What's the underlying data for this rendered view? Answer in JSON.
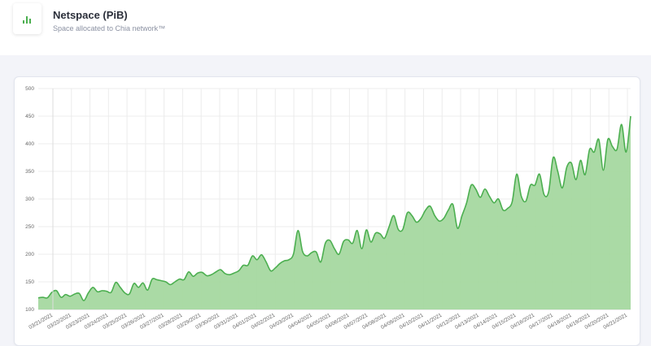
{
  "header": {
    "title": "Netspace (PiB)",
    "subtitle": "Space allocated to Chia network™",
    "icon": "bar-chart-icon"
  },
  "colors": {
    "line": "#4caf50",
    "fill": "#a5d8a0",
    "grid": "#ececec"
  },
  "chart_data": {
    "type": "area",
    "title": "",
    "xlabel": "",
    "ylabel": "",
    "ylim": [
      100,
      500
    ],
    "yticks": [
      100,
      150,
      200,
      250,
      300,
      350,
      400,
      450,
      500
    ],
    "x_tick_labels": [
      "03/21/2021",
      "03/22/2021",
      "03/23/2021",
      "03/24/2021",
      "03/25/2021",
      "03/26/2021",
      "03/27/2021",
      "03/28/2021",
      "03/29/2021",
      "03/30/2021",
      "03/31/2021",
      "04/01/2021",
      "04/02/2021",
      "04/03/2021",
      "04/04/2021",
      "04/05/2021",
      "04/06/2021",
      "04/07/2021",
      "04/08/2021",
      "04/09/2021",
      "04/10/2021",
      "04/11/2021",
      "04/12/2021",
      "04/13/2021",
      "04/14/2021",
      "04/15/2021",
      "04/16/2021",
      "04/17/2021",
      "04/18/2021",
      "04/19/2021",
      "04/20/2021",
      "04/21/2021"
    ],
    "grid": true,
    "legend": "none",
    "series": [
      {
        "values": [
          121,
          122,
          121,
          131,
          134,
          122,
          127,
          124,
          128,
          129,
          116,
          130,
          140,
          132,
          134,
          133,
          131,
          149,
          140,
          130,
          128,
          147,
          140,
          148,
          135,
          155,
          154,
          152,
          150,
          145,
          150,
          155,
          154,
          168,
          160,
          166,
          167,
          161,
          163,
          168,
          172,
          165,
          163,
          166,
          170,
          180,
          180,
          197,
          190,
          199,
          186,
          170,
          175,
          183,
          188,
          190,
          200,
          243,
          205,
          197,
          203,
          204,
          186,
          220,
          225,
          210,
          200,
          223,
          226,
          220,
          243,
          210,
          244,
          222,
          238,
          237,
          229,
          250,
          270,
          245,
          245,
          275,
          270,
          258,
          265,
          280,
          287,
          270,
          260,
          265,
          280,
          290,
          247,
          270,
          293,
          325,
          318,
          303,
          318,
          305,
          293,
          300,
          280,
          283,
          295,
          345,
          305,
          296,
          325,
          325,
          345,
          308,
          313,
          375,
          350,
          320,
          358,
          365,
          335,
          370,
          344,
          390,
          385,
          408,
          352,
          408,
          395,
          390,
          435,
          385,
          450
        ]
      }
    ]
  }
}
